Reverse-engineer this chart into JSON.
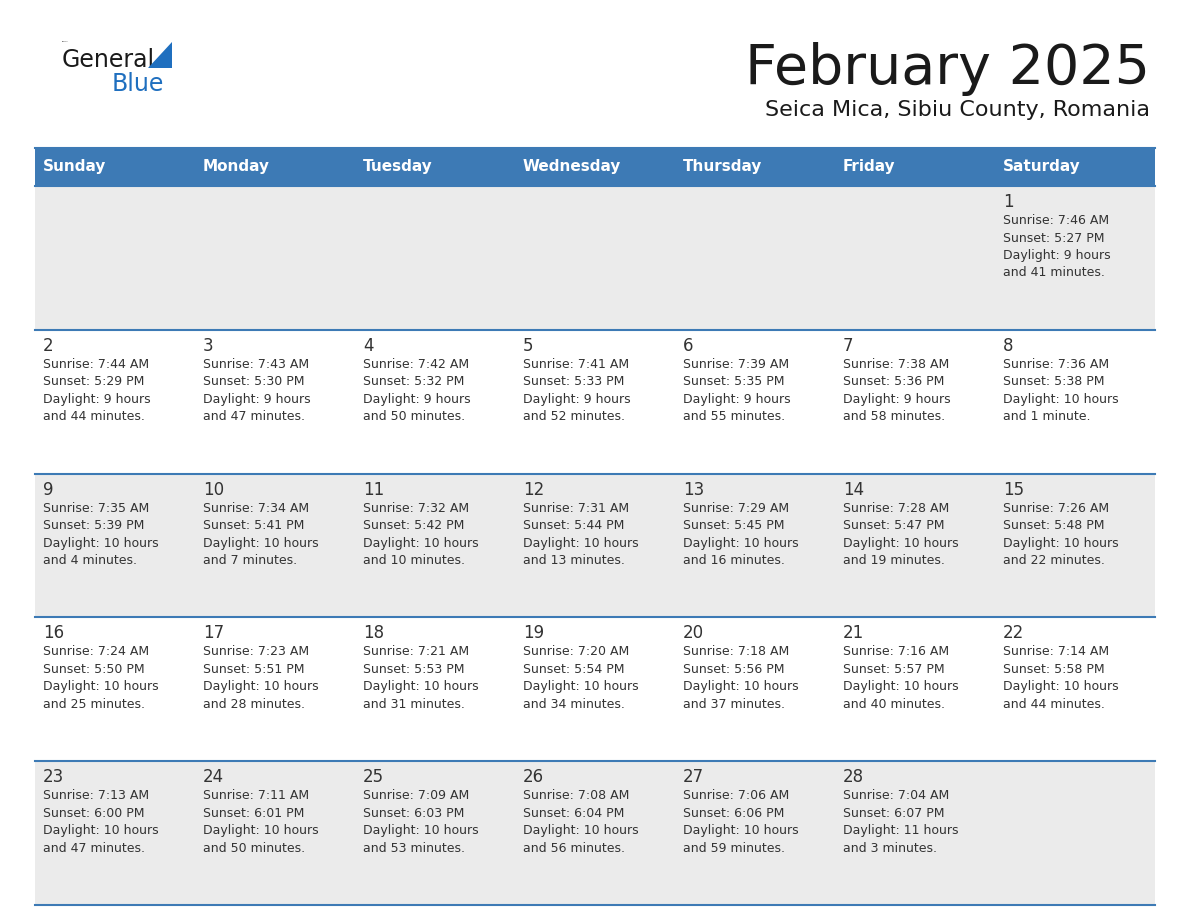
{
  "title": "February 2025",
  "subtitle": "Seica Mica, Sibiu County, Romania",
  "days_of_week": [
    "Sunday",
    "Monday",
    "Tuesday",
    "Wednesday",
    "Thursday",
    "Friday",
    "Saturday"
  ],
  "header_bg": "#3D7AB5",
  "header_text": "#FFFFFF",
  "cell_bg_light": "#EBEBEB",
  "cell_bg_white": "#FFFFFF",
  "border_color": "#3D7AB5",
  "text_color": "#333333",
  "title_color": "#1a1a1a",
  "subtitle_color": "#1a1a1a",
  "logo_general_color": "#1a1a1a",
  "logo_blue_color": "#1F6FBF",
  "logo_triangle_color": "#1F6FBF",
  "calendar_data": [
    [
      null,
      null,
      null,
      null,
      null,
      null,
      {
        "day": 1,
        "sunrise": "7:46 AM",
        "sunset": "5:27 PM",
        "daylight": "9 hours and 41 minutes."
      }
    ],
    [
      {
        "day": 2,
        "sunrise": "7:44 AM",
        "sunset": "5:29 PM",
        "daylight": "9 hours and 44 minutes."
      },
      {
        "day": 3,
        "sunrise": "7:43 AM",
        "sunset": "5:30 PM",
        "daylight": "9 hours and 47 minutes."
      },
      {
        "day": 4,
        "sunrise": "7:42 AM",
        "sunset": "5:32 PM",
        "daylight": "9 hours and 50 minutes."
      },
      {
        "day": 5,
        "sunrise": "7:41 AM",
        "sunset": "5:33 PM",
        "daylight": "9 hours and 52 minutes."
      },
      {
        "day": 6,
        "sunrise": "7:39 AM",
        "sunset": "5:35 PM",
        "daylight": "9 hours and 55 minutes."
      },
      {
        "day": 7,
        "sunrise": "7:38 AM",
        "sunset": "5:36 PM",
        "daylight": "9 hours and 58 minutes."
      },
      {
        "day": 8,
        "sunrise": "7:36 AM",
        "sunset": "5:38 PM",
        "daylight": "10 hours and 1 minute."
      }
    ],
    [
      {
        "day": 9,
        "sunrise": "7:35 AM",
        "sunset": "5:39 PM",
        "daylight": "10 hours and 4 minutes."
      },
      {
        "day": 10,
        "sunrise": "7:34 AM",
        "sunset": "5:41 PM",
        "daylight": "10 hours and 7 minutes."
      },
      {
        "day": 11,
        "sunrise": "7:32 AM",
        "sunset": "5:42 PM",
        "daylight": "10 hours and 10 minutes."
      },
      {
        "day": 12,
        "sunrise": "7:31 AM",
        "sunset": "5:44 PM",
        "daylight": "10 hours and 13 minutes."
      },
      {
        "day": 13,
        "sunrise": "7:29 AM",
        "sunset": "5:45 PM",
        "daylight": "10 hours and 16 minutes."
      },
      {
        "day": 14,
        "sunrise": "7:28 AM",
        "sunset": "5:47 PM",
        "daylight": "10 hours and 19 minutes."
      },
      {
        "day": 15,
        "sunrise": "7:26 AM",
        "sunset": "5:48 PM",
        "daylight": "10 hours and 22 minutes."
      }
    ],
    [
      {
        "day": 16,
        "sunrise": "7:24 AM",
        "sunset": "5:50 PM",
        "daylight": "10 hours and 25 minutes."
      },
      {
        "day": 17,
        "sunrise": "7:23 AM",
        "sunset": "5:51 PM",
        "daylight": "10 hours and 28 minutes."
      },
      {
        "day": 18,
        "sunrise": "7:21 AM",
        "sunset": "5:53 PM",
        "daylight": "10 hours and 31 minutes."
      },
      {
        "day": 19,
        "sunrise": "7:20 AM",
        "sunset": "5:54 PM",
        "daylight": "10 hours and 34 minutes."
      },
      {
        "day": 20,
        "sunrise": "7:18 AM",
        "sunset": "5:56 PM",
        "daylight": "10 hours and 37 minutes."
      },
      {
        "day": 21,
        "sunrise": "7:16 AM",
        "sunset": "5:57 PM",
        "daylight": "10 hours and 40 minutes."
      },
      {
        "day": 22,
        "sunrise": "7:14 AM",
        "sunset": "5:58 PM",
        "daylight": "10 hours and 44 minutes."
      }
    ],
    [
      {
        "day": 23,
        "sunrise": "7:13 AM",
        "sunset": "6:00 PM",
        "daylight": "10 hours and 47 minutes."
      },
      {
        "day": 24,
        "sunrise": "7:11 AM",
        "sunset": "6:01 PM",
        "daylight": "10 hours and 50 minutes."
      },
      {
        "day": 25,
        "sunrise": "7:09 AM",
        "sunset": "6:03 PM",
        "daylight": "10 hours and 53 minutes."
      },
      {
        "day": 26,
        "sunrise": "7:08 AM",
        "sunset": "6:04 PM",
        "daylight": "10 hours and 56 minutes."
      },
      {
        "day": 27,
        "sunrise": "7:06 AM",
        "sunset": "6:06 PM",
        "daylight": "10 hours and 59 minutes."
      },
      {
        "day": 28,
        "sunrise": "7:04 AM",
        "sunset": "6:07 PM",
        "daylight": "11 hours and 3 minutes."
      },
      null
    ]
  ]
}
